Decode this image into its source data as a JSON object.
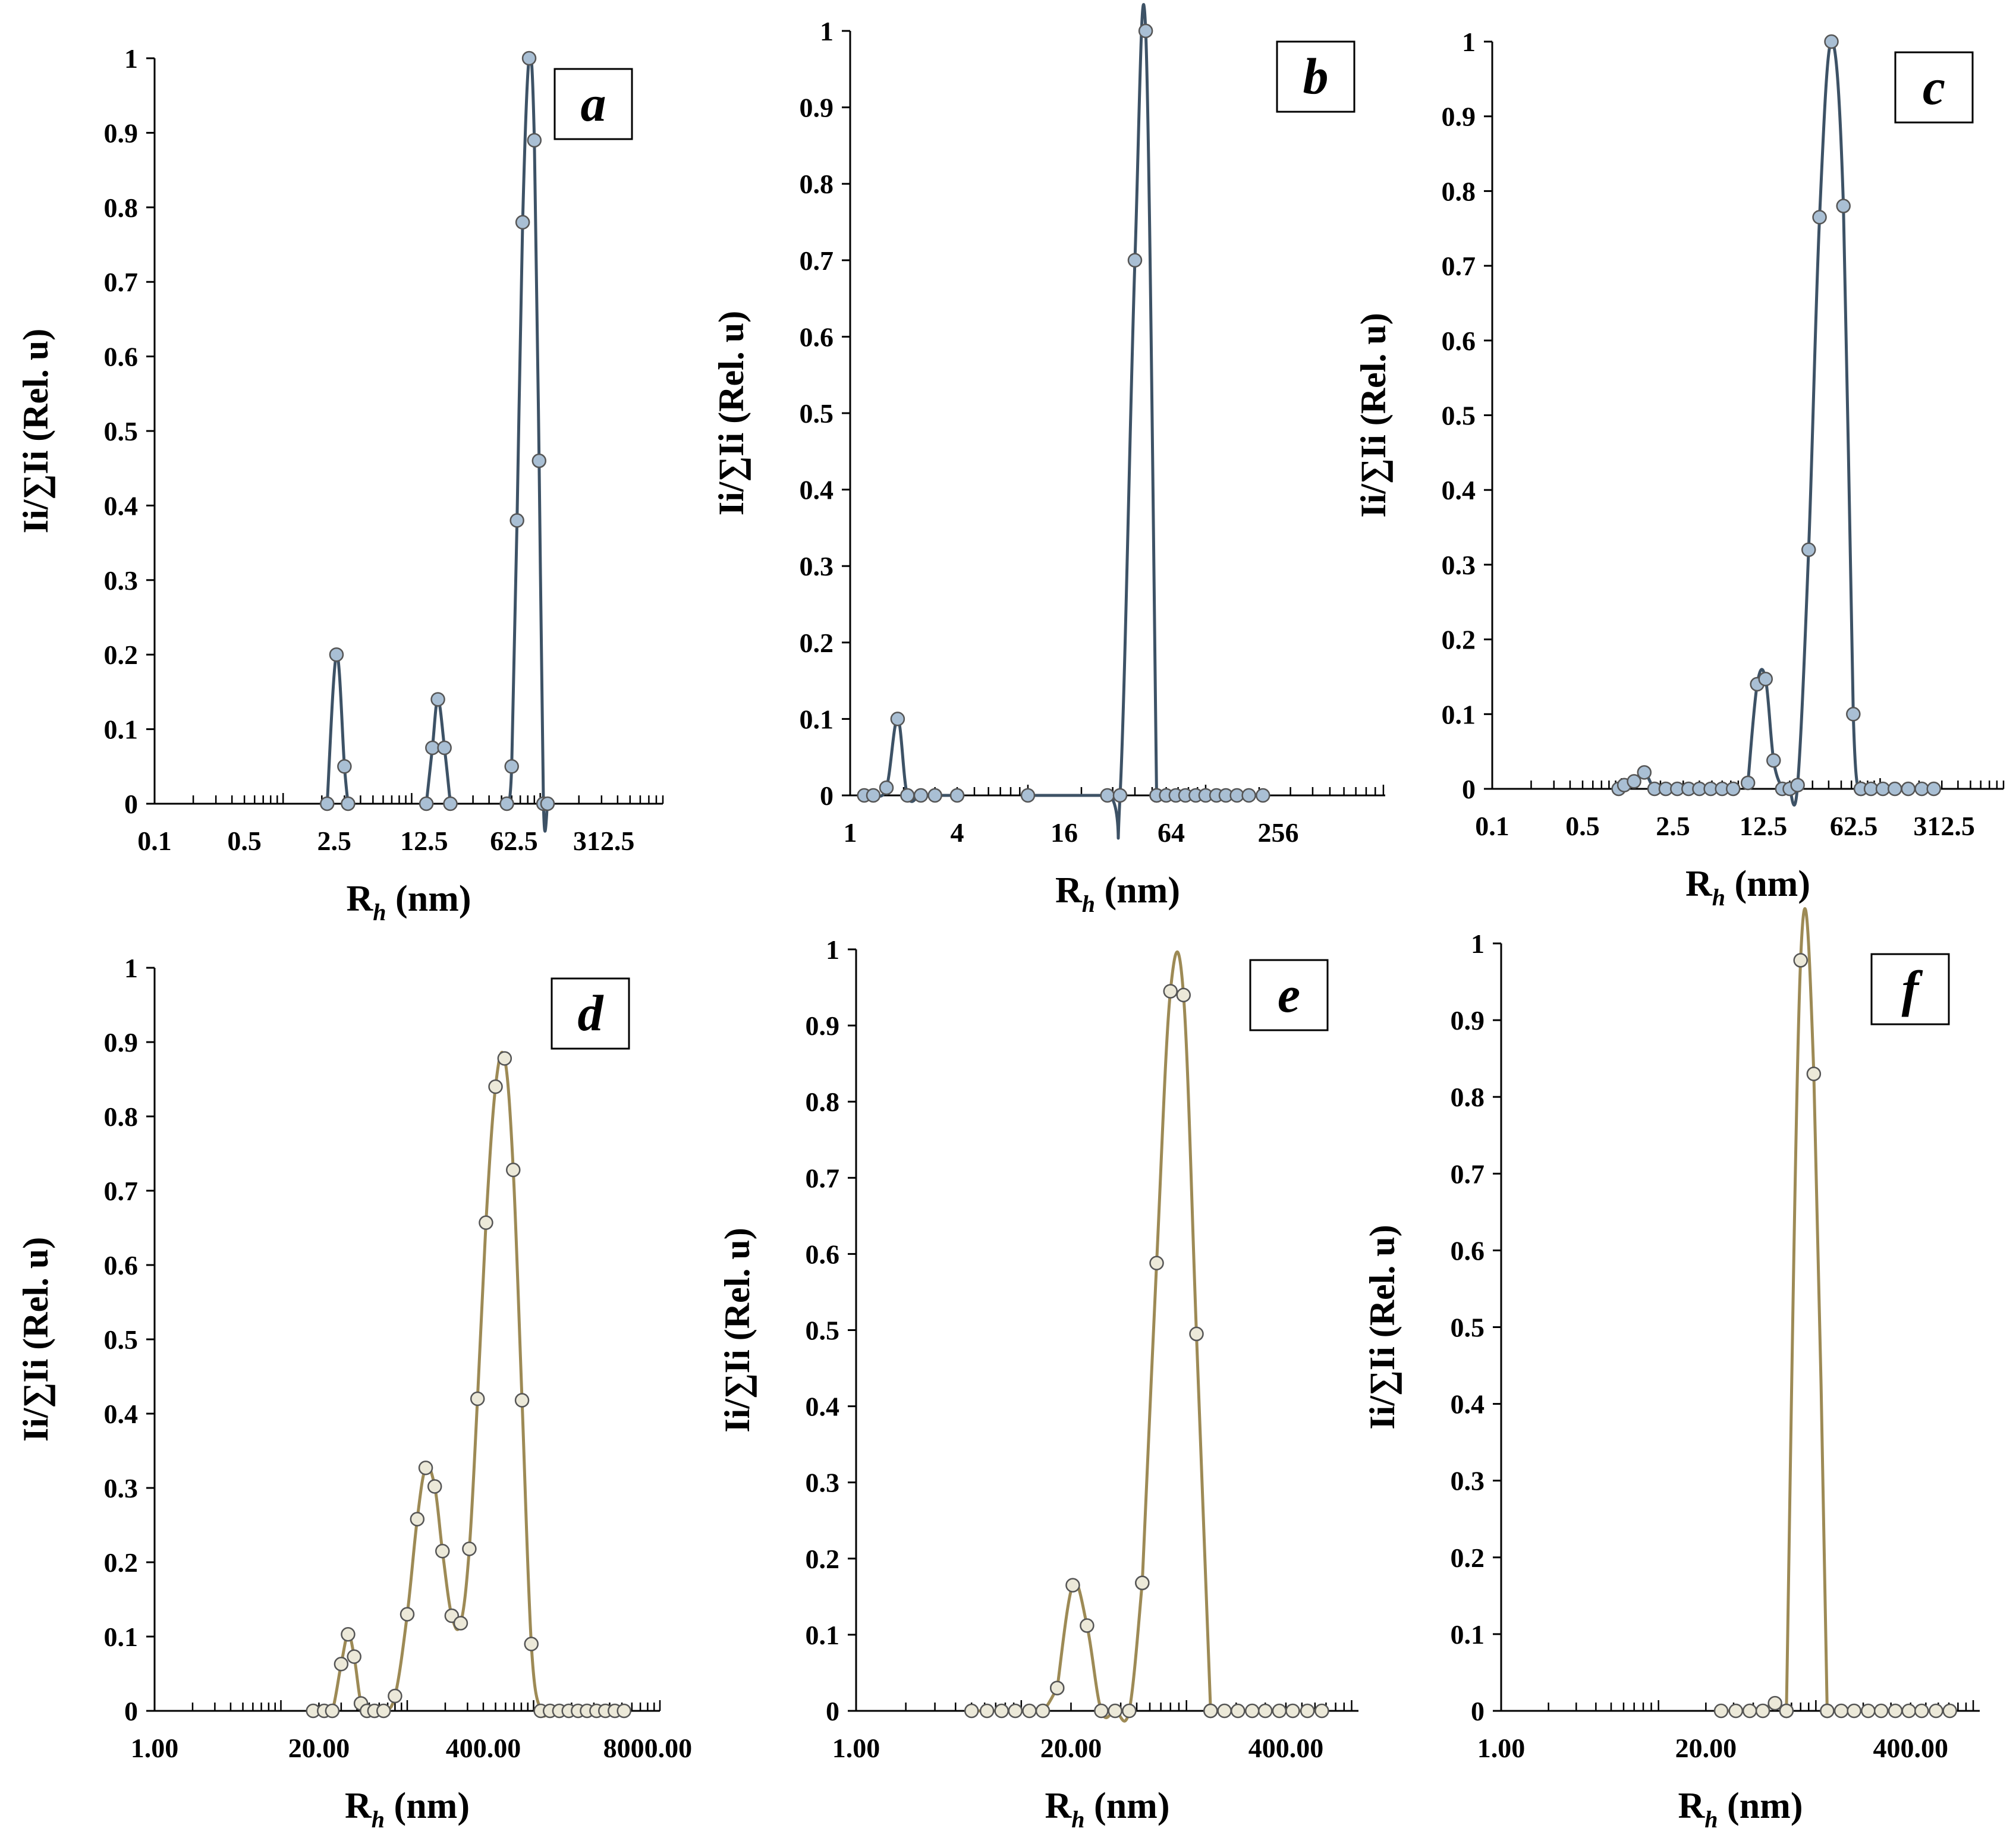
{
  "colors": {
    "blue_series": "#3d5266",
    "blue_marker": "#a9bfd4",
    "olive_series": "#9d8a55",
    "olive_marker": "#ece9d9",
    "marker_edge": "#555555"
  },
  "chart_data": [
    {
      "panel": "a",
      "type": "line",
      "xscale": "log",
      "xlabel_main": "R",
      "xlabel_sub": "h",
      "xlabel_unit": " (nm)",
      "ylabel": "Ii/∑Ii (Rel. u)",
      "xlim": [
        0.1,
        900
      ],
      "ylim": [
        0,
        1
      ],
      "yticks": [
        "0",
        "0.1",
        "0.2",
        "0.3",
        "0.4",
        "0.5",
        "0.6",
        "0.7",
        "0.8",
        "0.9",
        "1"
      ],
      "xticks": [
        {
          "v": 0.1,
          "label": "0.1"
        },
        {
          "v": 0.5,
          "label": "0.5"
        },
        {
          "v": 2.5,
          "label": "2.5"
        },
        {
          "v": 12.5,
          "label": "12.5"
        },
        {
          "v": 62.5,
          "label": "62.5"
        },
        {
          "v": 312.5,
          "label": "312.5"
        }
      ],
      "color": "blue",
      "series": [
        {
          "x": [
            2.2,
            2.6,
            3.0,
            3.2
          ],
          "y": [
            0,
            0.2,
            0.05,
            0
          ]
        },
        {
          "x": [
            13.0,
            14.5,
            16.0,
            18.0,
            20.0
          ],
          "y": [
            0,
            0.075,
            0.14,
            0.075,
            0
          ]
        },
        {
          "x": [
            55,
            60,
            66,
            73,
            82,
            90,
            98,
            106,
            114
          ],
          "y": [
            0,
            0.05,
            0.38,
            0.78,
            1.0,
            0.89,
            0.46,
            0,
            0
          ]
        }
      ]
    },
    {
      "panel": "b",
      "type": "line",
      "xscale": "log",
      "xlabel_main": "R",
      "xlabel_sub": "h",
      "xlabel_unit": " (nm)",
      "ylabel": "Ii/∑Ii (Rel. u)",
      "xlim": [
        1,
        1024
      ],
      "ylim": [
        0,
        1
      ],
      "yticks": [
        "0",
        "0.1",
        "0.2",
        "0.3",
        "0.4",
        "0.5",
        "0.6",
        "0.7",
        "0.8",
        "0.9",
        "1"
      ],
      "xticks": [
        {
          "v": 1,
          "label": "1"
        },
        {
          "v": 4,
          "label": "4"
        },
        {
          "v": 16,
          "label": "16"
        },
        {
          "v": 64,
          "label": "64"
        },
        {
          "v": 256,
          "label": "256"
        }
      ],
      "color": "blue",
      "series": [
        {
          "x": [
            1.2,
            1.35,
            1.6,
            1.85,
            2.1,
            2.5,
            3.0,
            4.0
          ],
          "y": [
            0,
            0,
            0.01,
            0.1,
            0,
            0,
            0,
            0
          ]
        },
        {
          "x": [
            10,
            28,
            33,
            40,
            46,
            53
          ],
          "y": [
            0,
            0,
            0,
            0.7,
            1.0,
            0
          ]
        },
        {
          "x": [
            53,
            60,
            68,
            77,
            88,
            100,
            115,
            130,
            150,
            175,
            210
          ],
          "y": [
            0,
            0,
            0,
            0,
            0,
            0,
            0,
            0,
            0,
            0,
            0
          ]
        }
      ]
    },
    {
      "panel": "c",
      "type": "line",
      "xscale": "log",
      "xlabel_main": "R",
      "xlabel_sub": "h",
      "xlabel_unit": " (nm)",
      "ylabel": "Ii/∑Ii (Rel. u)",
      "xlim": [
        0.1,
        900
      ],
      "ylim": [
        0,
        1
      ],
      "yticks": [
        "0",
        "0.1",
        "0.2",
        "0.3",
        "0.4",
        "0.5",
        "0.6",
        "0.7",
        "0.8",
        "0.9",
        "1"
      ],
      "xticks": [
        {
          "v": 0.1,
          "label": "0.1"
        },
        {
          "v": 0.5,
          "label": "0.5"
        },
        {
          "v": 2.5,
          "label": "2.5"
        },
        {
          "v": 12.5,
          "label": "12.5"
        },
        {
          "v": 62.5,
          "label": "62.5"
        },
        {
          "v": 312.5,
          "label": "312.5"
        }
      ],
      "color": "blue",
      "series": [
        {
          "x": [
            0.95,
            1.05,
            1.25,
            1.5,
            1.8,
            2.2,
            2.7,
            3.3,
            4.0,
            4.9,
            6.0,
            7.3
          ],
          "y": [
            0,
            0.005,
            0.01,
            0.022,
            0,
            0,
            0,
            0,
            0,
            0,
            0,
            0
          ]
        },
        {
          "x": [
            9.5,
            11.2,
            13.0,
            15.0,
            17.5
          ],
          "y": [
            0.008,
            0.14,
            0.147,
            0.038,
            0
          ]
        },
        {
          "x": [
            20,
            23,
            28,
            34,
            42,
            52,
            62,
            71
          ],
          "y": [
            0,
            0.005,
            0.32,
            0.765,
            1.0,
            0.78,
            0.1,
            0
          ]
        },
        {
          "x": [
            71,
            85,
            105,
            130,
            165,
            210,
            260
          ],
          "y": [
            0,
            0,
            0,
            0,
            0,
            0,
            0
          ]
        }
      ]
    },
    {
      "panel": "d",
      "type": "line",
      "xscale": "log",
      "xlabel_main": "R",
      "xlabel_sub": "h",
      "xlabel_unit": " (nm)",
      "ylabel": "Ii/∑Ii (Rel. u)",
      "xlim": [
        1,
        10000
      ],
      "ylim": [
        0,
        1
      ],
      "yticks": [
        "0",
        "0.1",
        "0.2",
        "0.3",
        "0.4",
        "0.5",
        "0.6",
        "0.7",
        "0.8",
        "0.9",
        "1"
      ],
      "xticks": [
        {
          "v": 1,
          "label": "1.00"
        },
        {
          "v": 20,
          "label": "20.00"
        },
        {
          "v": 400,
          "label": "400.00"
        },
        {
          "v": 8000,
          "label": "8000.00"
        }
      ],
      "color": "olive",
      "series": [
        {
          "x": [
            18,
            22,
            25.5,
            30,
            34,
            38,
            43,
            48
          ],
          "y": [
            0,
            0,
            0,
            0.063,
            0.103,
            0.073,
            0.01,
            0
          ]
        },
        {
          "x": [
            55,
            65,
            80,
            100,
            120,
            140,
            165,
            190,
            225,
            265,
            310,
            360,
            420,
            500,
            590,
            690,
            810,
            960,
            1140,
            1350,
            1600,
            1900,
            2250,
            2650,
            3150,
            3700,
            4400,
            5200
          ],
          "y": [
            0,
            0,
            0.02,
            0.13,
            0.258,
            0.327,
            0.302,
            0.215,
            0.128,
            0.118,
            0.218,
            0.42,
            0.657,
            0.84,
            0.878,
            0.728,
            0.418,
            0.09,
            0,
            0,
            0,
            0,
            0,
            0,
            0,
            0,
            0,
            0
          ]
        }
      ]
    },
    {
      "panel": "e",
      "type": "line",
      "xscale": "log",
      "xlabel_main": "R",
      "xlabel_sub": "h",
      "xlabel_unit": " (nm)",
      "ylabel": "Ii/∑Ii (Rel. u)",
      "xlim": [
        1,
        1100
      ],
      "ylim": [
        0,
        1
      ],
      "yticks": [
        "0",
        "0.1",
        "0.2",
        "0.3",
        "0.4",
        "0.5",
        "0.6",
        "0.7",
        "0.8",
        "0.9",
        "1"
      ],
      "xticks": [
        {
          "v": 1,
          "label": "1.00"
        },
        {
          "v": 20,
          "label": "20.00"
        },
        {
          "v": 400,
          "label": "400.00"
        }
      ],
      "color": "olive",
      "series": [
        {
          "x": [
            5.0,
            6.2,
            7.6,
            9.2,
            11.2,
            13.5,
            16.5
          ],
          "y": [
            0,
            0,
            0,
            0,
            0,
            0,
            0.03
          ]
        },
        {
          "x": [
            16.5,
            20.5,
            25.0,
            30.5,
            37,
            45,
            54
          ],
          "y": [
            0.03,
            0.165,
            0.112,
            0,
            0,
            0,
            0.168
          ]
        },
        {
          "x": [
            54,
            66,
            80,
            96,
            115,
            140
          ],
          "y": [
            0.168,
            0.588,
            0.945,
            0.94,
            0.495,
            0
          ]
        },
        {
          "x": [
            140,
            170,
            205,
            250,
            300,
            365,
            440,
            540,
            660
          ],
          "y": [
            0,
            0,
            0,
            0,
            0,
            0,
            0,
            0,
            0
          ]
        }
      ]
    },
    {
      "panel": "f",
      "type": "line",
      "xscale": "log",
      "xlabel_main": "R",
      "xlabel_sub": "h",
      "xlabel_unit": " (nm)",
      "ylabel": "Ii/∑Ii (Rel. u)",
      "xlim": [
        1,
        1100
      ],
      "ylim": [
        0,
        1
      ],
      "yticks": [
        "0",
        "0.1",
        "0.2",
        "0.3",
        "0.4",
        "0.5",
        "0.6",
        "0.7",
        "0.8",
        "0.9",
        "1"
      ],
      "xticks": [
        {
          "v": 1,
          "label": "1.00"
        },
        {
          "v": 20,
          "label": "20.00"
        },
        {
          "v": 400,
          "label": "400.00"
        }
      ],
      "color": "olive",
      "series": [
        {
          "x": [
            25,
            31,
            38,
            46,
            55,
            65
          ],
          "y": [
            0,
            0,
            0,
            0,
            0.01,
            0
          ]
        },
        {
          "x": [
            65,
            80,
            97,
            118
          ],
          "y": [
            0,
            0.978,
            0.83,
            0
          ]
        },
        {
          "x": [
            118,
            145,
            175,
            215,
            260,
            320,
            390,
            470,
            580,
            710
          ],
          "y": [
            0,
            0,
            0,
            0,
            0,
            0,
            0,
            0,
            0,
            0
          ]
        }
      ]
    }
  ]
}
